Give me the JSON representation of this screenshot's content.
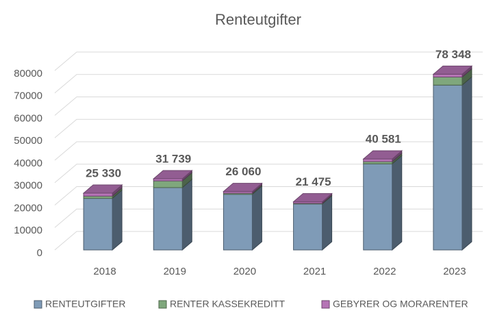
{
  "chart_data": {
    "type": "bar3d_stacked",
    "title": "Renteutgifter",
    "categories": [
      "2018",
      "2019",
      "2020",
      "2021",
      "2022",
      "2023"
    ],
    "series": [
      {
        "name": "RENTEUTGIFTER",
        "color": "#7f9bb7",
        "values": [
          23000,
          27800,
          24800,
          20500,
          38400,
          73500
        ]
      },
      {
        "name": "RENTER KASSEKREDITT",
        "color": "#7fa77c",
        "values": [
          1000,
          3000,
          500,
          300,
          1000,
          3600
        ]
      },
      {
        "name": "GEBYRER OG MORARENTER",
        "color": "#b674b6",
        "values": [
          1330,
          939,
          760,
          675,
          1181,
          1248
        ]
      }
    ],
    "totals": [
      25330,
      31739,
      26060,
      21475,
      40581,
      78348
    ],
    "total_labels": [
      "25 330",
      "31 739",
      "26 060",
      "21 475",
      "40 581",
      "78 348"
    ],
    "ylim": [
      0,
      80000
    ],
    "yticks": [
      0,
      10000,
      20000,
      30000,
      40000,
      50000,
      60000,
      70000,
      80000
    ],
    "grid": true,
    "legend": "bottom"
  }
}
